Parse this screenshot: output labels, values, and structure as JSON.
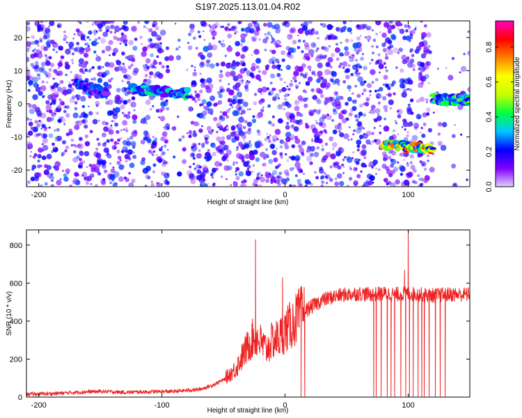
{
  "figure": {
    "title": "S197.2025.113.01.04.R02"
  },
  "chart_data": [
    {
      "type": "heatmap",
      "xlabel": "Height of straight line (km)",
      "ylabel": "Frequency (Hz)",
      "xlim": [
        -210,
        150
      ],
      "ylim": [
        -25,
        25
      ],
      "x_ticks": [
        -200,
        -100,
        0,
        100
      ],
      "y_ticks": [
        -20,
        -10,
        0,
        10,
        20
      ],
      "colorbar": {
        "label": "Normalized spectral amplitude",
        "range": [
          0,
          0.95
        ],
        "ticks": [
          0.0,
          0.2,
          0.4,
          0.6,
          0.8
        ],
        "colormap": [
          "#e0d0ff",
          "#8000ff",
          "#0000ff",
          "#00c8ff",
          "#00ff40",
          "#c8ff00",
          "#ffff00",
          "#ff8000",
          "#ff0000",
          "#ff00c0"
        ]
      },
      "signal_tracks": [
        {
          "x": [
            -170,
            -145
          ],
          "freq": [
            6,
            3
          ],
          "peak_amplitude": 0.3
        },
        {
          "x": [
            -125,
            -78
          ],
          "freq": [
            4.5,
            3
          ],
          "peak_amplitude": 0.4
        },
        {
          "x": [
            80,
            120
          ],
          "freq": [
            -12,
            -14
          ],
          "peak_amplitude": 0.85
        },
        {
          "x": [
            120,
            150
          ],
          "freq": [
            1.5,
            1
          ],
          "peak_amplitude": 0.5
        }
      ],
      "noise_gaps_x": [
        [
          -150,
          -148
        ],
        [
          -121,
          -116
        ],
        [
          -95,
          -78
        ],
        [
          78,
          80
        ],
        [
          117,
          150
        ]
      ],
      "grid": false
    },
    {
      "type": "line",
      "xlabel": "Height of straight line (km)",
      "ylabel": "SNR (10 * v/v)",
      "xlim": [
        -210,
        150
      ],
      "ylim": [
        0,
        880
      ],
      "x_ticks": [
        -200,
        -100,
        0,
        100
      ],
      "y_ticks": [
        0,
        200,
        400,
        600,
        800
      ],
      "color": "#ee2222",
      "grid": false,
      "series": [
        {
          "x": [
            -210,
            -190,
            -170,
            -150,
            -130,
            -110,
            -90,
            -70,
            -60,
            -50,
            -40,
            -35,
            -30,
            -25,
            -20,
            -15,
            -10,
            -5,
            0,
            5,
            10,
            20,
            30,
            40,
            50,
            60,
            70,
            80,
            90,
            100,
            110,
            120,
            130,
            140,
            150
          ],
          "values": [
            15,
            18,
            25,
            30,
            25,
            28,
            30,
            40,
            60,
            90,
            150,
            210,
            270,
            320,
            290,
            250,
            300,
            310,
            350,
            380,
            420,
            470,
            510,
            530,
            540,
            545,
            540,
            545,
            540,
            545,
            540,
            535,
            540,
            540,
            540
          ]
        }
      ],
      "spikes_up": [
        {
          "x": -24,
          "y": 830
        },
        {
          "x": -2,
          "y": 630
        },
        {
          "x": 97,
          "y": 670
        },
        {
          "x": 100,
          "y": 880
        }
      ],
      "dropouts_x": [
        13,
        16,
        72,
        74,
        78,
        83,
        86,
        89,
        94,
        98,
        101,
        104,
        108,
        111,
        113,
        117,
        122,
        126,
        130
      ]
    }
  ]
}
